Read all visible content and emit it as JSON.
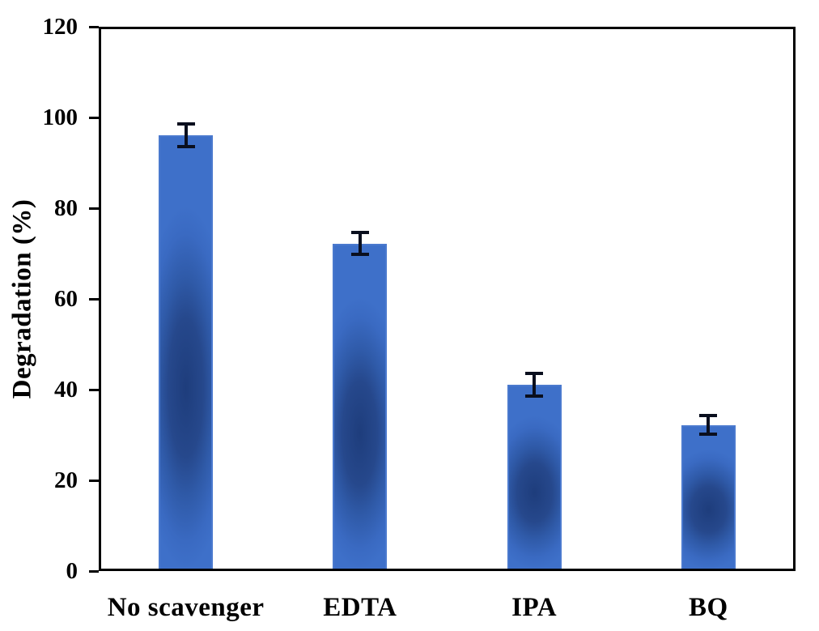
{
  "chart_data": {
    "type": "bar",
    "title": "",
    "xlabel": "",
    "ylabel": "Degradation (%)",
    "categories": [
      "No scavenger",
      "EDTA",
      "IPA",
      "BQ"
    ],
    "series": [
      {
        "name": "Degradation",
        "values": [
          96,
          72.2,
          41.1,
          32.2
        ],
        "errors": [
          2.5,
          2.4,
          2.5,
          2.1
        ]
      }
    ],
    "ylim": [
      0,
      120
    ],
    "yticks": [
      0,
      20,
      40,
      60,
      80,
      100,
      120
    ],
    "grid": false,
    "legend": false,
    "error_bars": "vertical, symmetric, black caps",
    "colors": {
      "bar_light": "#3A6AC2",
      "bar_mid": "#2F5AA8",
      "bar_dark": "#1E3D7C",
      "bar_edge": "#4A79CE",
      "error": "#0A0F1E",
      "axis": "#000000",
      "text": "#000000",
      "background": "#FFFFFF"
    }
  }
}
